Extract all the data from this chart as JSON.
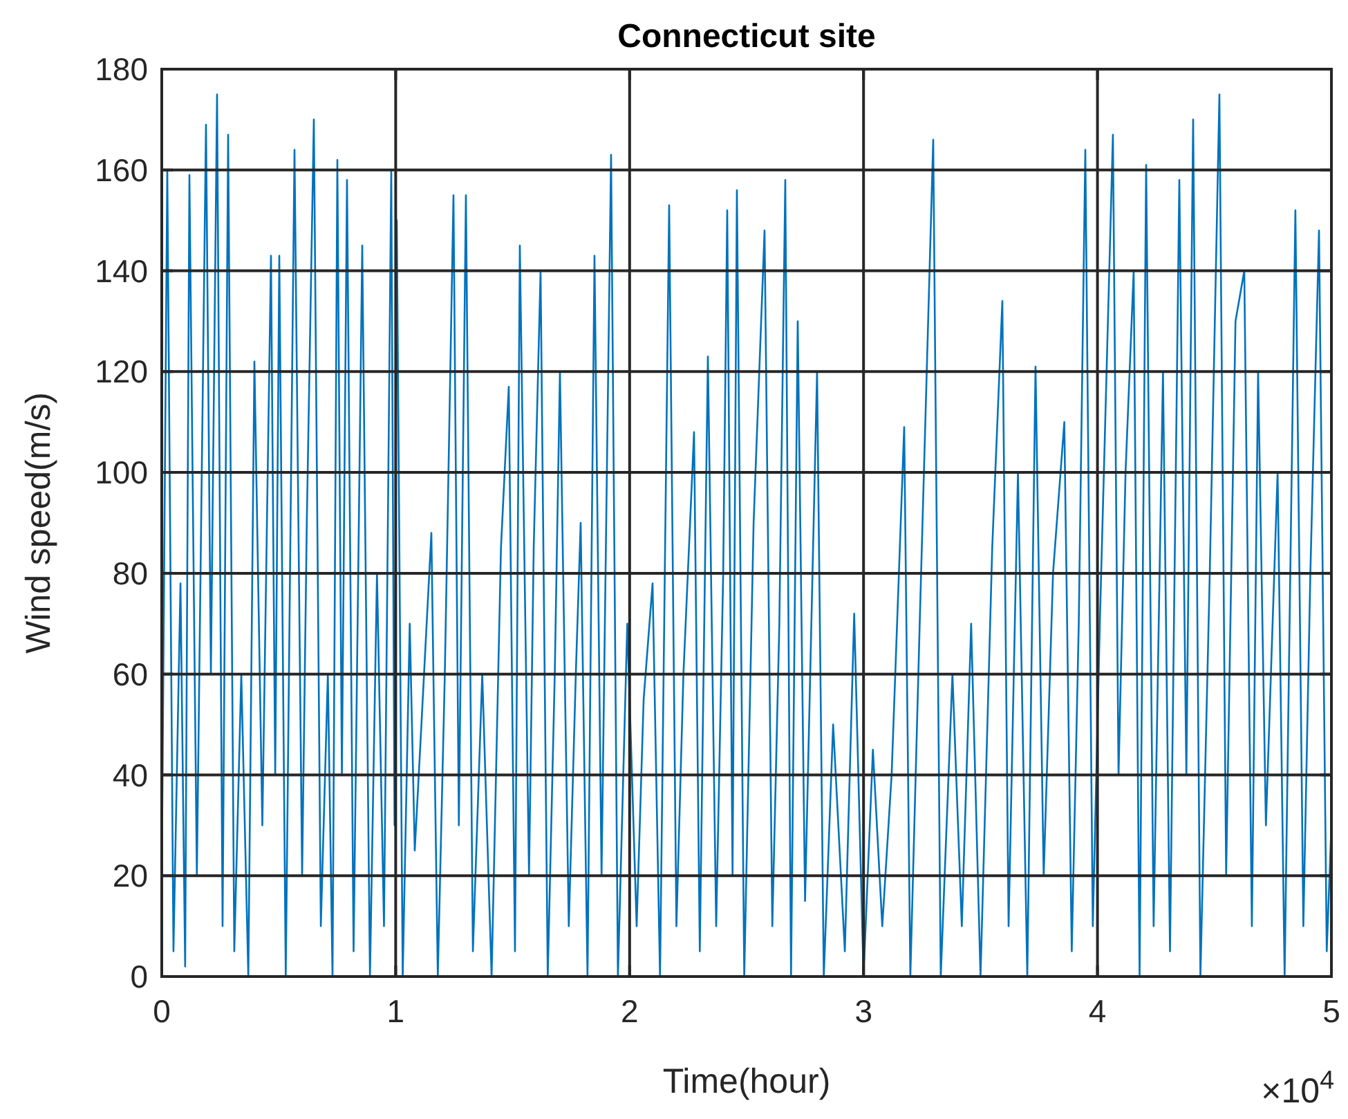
{
  "chart_data": {
    "type": "line",
    "title": "Connecticut site",
    "xlabel": "Time(hour)",
    "ylabel": "Wind speed(m/s)",
    "annotations": [
      "×10$^{4}$"
    ],
    "xlim": [
      0,
      5
    ],
    "xticks": [
      0,
      1,
      2,
      3,
      4,
      5
    ],
    "ylim": [
      0,
      180
    ],
    "yticks": [
      0,
      20,
      40,
      60,
      80,
      100,
      120,
      140,
      160,
      180
    ],
    "grid": true,
    "line_style": "solid",
    "x": [
      0,
      0.0236,
      0.05,
      0.08,
      0.1,
      0.1182,
      0.15,
      0.1891,
      0.21,
      0.2364,
      0.26,
      0.2837,
      0.31,
      0.34,
      0.37,
      0.396,
      0.43,
      0.4669,
      0.485,
      0.5024,
      0.53,
      0.5674,
      0.6,
      0.62,
      0.6501,
      0.68,
      0.71,
      0.73,
      0.7506,
      0.77,
      0.7919,
      0.82,
      0.857,
      0.89,
      0.92,
      0.95,
      0.9811,
      0.995,
      1.0047,
      1.03,
      1.06,
      1.0815,
      1.11,
      1.1525,
      1.18,
      1.21,
      1.247,
      1.27,
      1.3002,
      1.33,
      1.37,
      1.41,
      1.45,
      1.4834,
      1.51,
      1.5307,
      1.57,
      1.59,
      1.6193,
      1.65,
      1.68,
      1.7021,
      1.74,
      1.77,
      1.7907,
      1.82,
      1.8498,
      1.88,
      1.9207,
      1.95,
      1.99,
      2.03,
      2.06,
      2.0981,
      2.13,
      2.169,
      2.2,
      2.23,
      2.2754,
      2.3,
      2.3345,
      2.37,
      2.4,
      2.4172,
      2.44,
      2.4586,
      2.49,
      2.53,
      2.5768,
      2.61,
      2.64,
      2.6654,
      2.69,
      2.7186,
      2.75,
      2.8013,
      2.83,
      2.87,
      2.92,
      2.96,
      3,
      3.04,
      3.08,
      3.12,
      3.1737,
      3.2,
      3.24,
      3.2978,
      3.33,
      3.38,
      3.42,
      3.46,
      3.5,
      3.55,
      3.5933,
      3.62,
      3.66,
      3.7,
      3.7351,
      3.77,
      3.81,
      3.8582,
      3.89,
      3.92,
      3.948,
      3.98,
      4.01,
      4.066,
      4.09,
      4.12,
      4.1547,
      4.18,
      4.208,
      4.24,
      4.28,
      4.31,
      4.3498,
      4.38,
      4.4089,
      4.44,
      4.48,
      4.5212,
      4.55,
      4.59,
      4.6275,
      4.66,
      4.6866,
      4.72,
      4.77,
      4.8,
      4.846,
      4.88,
      4.91,
      4.947,
      4.98,
      5
    ],
    "series": [
      {
        "color": "#0072bd",
        "values": [
          20,
          160,
          5,
          78,
          2,
          159,
          20,
          169,
          60,
          175,
          10,
          167,
          5,
          60,
          0,
          122,
          30,
          143,
          40,
          143,
          0,
          164,
          20,
          90,
          170,
          10,
          60,
          0,
          162,
          40,
          158,
          5,
          145,
          0,
          80,
          10,
          160,
          30,
          150,
          0,
          70,
          25,
          50,
          88,
          0,
          60,
          155,
          30,
          155,
          5,
          60,
          0,
          85,
          117,
          5,
          145,
          20,
          85,
          140,
          0,
          60,
          120,
          10,
          60,
          90,
          0,
          143,
          20,
          163,
          0,
          70,
          10,
          55,
          78,
          0,
          153,
          10,
          60,
          108,
          5,
          123,
          10,
          80,
          152,
          20,
          156,
          0,
          90,
          148,
          10,
          70,
          158,
          0,
          130,
          15,
          120,
          0,
          50,
          5,
          72,
          0,
          45,
          10,
          40,
          109,
          0,
          70,
          166,
          0,
          60,
          10,
          70,
          0,
          85,
          134,
          10,
          100,
          0,
          121,
          20,
          80,
          110,
          5,
          70,
          164,
          10,
          70,
          167,
          40,
          100,
          140,
          0,
          161,
          10,
          120,
          5,
          158,
          40,
          170,
          0,
          80,
          175,
          20,
          130,
          140,
          10,
          120,
          30,
          100,
          0,
          152,
          10,
          80,
          148,
          5,
          30
        ]
      }
    ]
  }
}
